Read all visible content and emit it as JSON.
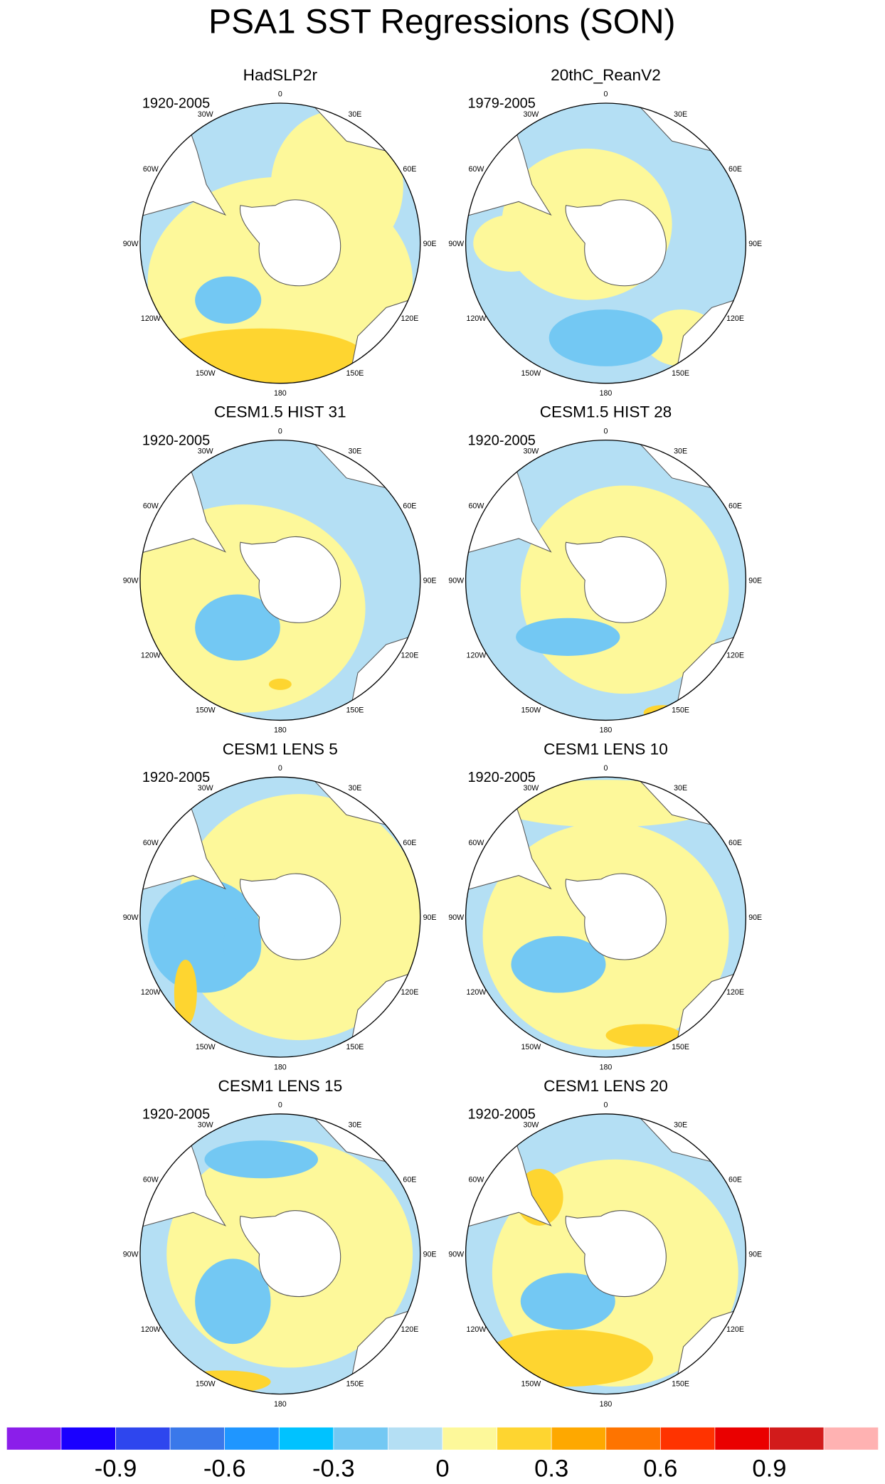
{
  "title": "PSA1 SST Regressions (SON)",
  "panels": [
    {
      "title": "HadSLP2r",
      "period": "1920-2005"
    },
    {
      "title": "20thC_ReanV2",
      "period": "1979-2005"
    },
    {
      "title": "CESM1.5 HIST 31",
      "period": "1920-2005"
    },
    {
      "title": "CESM1.5 HIST 28",
      "period": "1920-2005"
    },
    {
      "title": "CESM1 LENS 5",
      "period": "1920-2005"
    },
    {
      "title": "CESM1 LENS 10",
      "period": "1920-2005"
    },
    {
      "title": "CESM1 LENS 15",
      "period": "1920-2005"
    },
    {
      "title": "CESM1 LENS 20",
      "period": "1920-2005"
    }
  ],
  "longitude_labels": [
    "0",
    "30E",
    "60E",
    "90E",
    "120E",
    "150E",
    "180",
    "150W",
    "120W",
    "90W",
    "60W",
    "30W"
  ],
  "colorbar": {
    "colors": [
      "#8b1eea",
      "#1a00ff",
      "#2e46ee",
      "#3a78ea",
      "#1f96ff",
      "#00c2ff",
      "#73c8f3",
      "#b4dff4",
      "#fdf89a",
      "#fed530",
      "#fea800",
      "#fe7400",
      "#ff3300",
      "#ea0000",
      "#d21b1b",
      "#ffb2b2"
    ],
    "xlim": [
      -1.2,
      1.2
    ],
    "ticks": [
      -0.9,
      -0.6,
      -0.3,
      0,
      0.3,
      0.6,
      0.9
    ]
  }
}
